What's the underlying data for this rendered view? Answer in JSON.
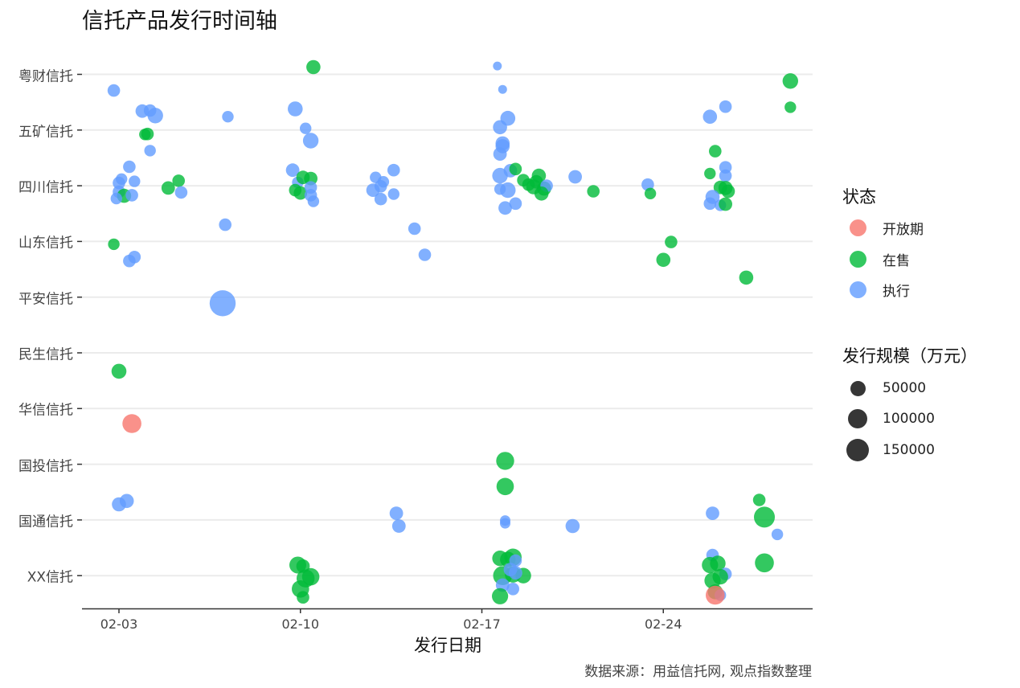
{
  "title": "信托产品发行时间轴",
  "chart_data": {
    "type": "scatter",
    "title": "信托产品发行时间轴",
    "xlabel": "发行日期",
    "ylabel": "",
    "caption": "数据来源：用益信托网, 观点指数整理",
    "x_ticks": [
      "02-03",
      "02-10",
      "02-17",
      "02-24"
    ],
    "x_range_days": [
      -1.4,
      26.8
    ],
    "y_categories": [
      "粤财信托",
      "五矿信托",
      "四川信托",
      "山东信托",
      "平安信托",
      "民生信托",
      "华信信托",
      "国投信托",
      "国通信托",
      "XX信托"
    ],
    "grid": true,
    "legend_position": "right",
    "status_legend": {
      "title": "状态",
      "items": [
        {
          "label": "开放期",
          "color": "#F8766D"
        },
        {
          "label": "在售",
          "color": "#00BA38"
        },
        {
          "label": "执行",
          "color": "#619CFF"
        }
      ]
    },
    "size_legend": {
      "title": "发行规模（万元）",
      "items": [
        {
          "label": "50000",
          "value": 50000
        },
        {
          "label": "100000",
          "value": 100000
        },
        {
          "label": "150000",
          "value": 150000
        }
      ]
    },
    "points_note": "x = days after 02-03; y = category index (0 = 粤财信托) plus jitter; size in 万元; status in {开放期, 在售, 执行}",
    "points": [
      {
        "x": 7.5,
        "y": -0.13,
        "size": 30000,
        "status": "在售"
      },
      {
        "x": -0.2,
        "y": 0.29,
        "size": 20000,
        "status": "执行"
      },
      {
        "x": 14.6,
        "y": -0.15,
        "size": 5000,
        "status": "执行"
      },
      {
        "x": 14.8,
        "y": 0.27,
        "size": 5000,
        "status": "执行"
      },
      {
        "x": 0.9,
        "y": 0.66,
        "size": 25000,
        "status": "执行"
      },
      {
        "x": 1.2,
        "y": 0.65,
        "size": 20000,
        "status": "执行"
      },
      {
        "x": 1.4,
        "y": 0.74,
        "size": 40000,
        "status": "执行"
      },
      {
        "x": 4.2,
        "y": 0.76,
        "size": 15000,
        "status": "执行"
      },
      {
        "x": 6.8,
        "y": 0.62,
        "size": 35000,
        "status": "执行"
      },
      {
        "x": 7.2,
        "y": 0.97,
        "size": 15000,
        "status": "执行"
      },
      {
        "x": 7.4,
        "y": 1.19,
        "size": 40000,
        "status": "执行"
      },
      {
        "x": 14.7,
        "y": 0.95,
        "size": 30000,
        "status": "执行"
      },
      {
        "x": 14.8,
        "y": 1.24,
        "size": 30000,
        "status": "执行"
      },
      {
        "x": 15.0,
        "y": 0.79,
        "size": 35000,
        "status": "执行"
      },
      {
        "x": 14.8,
        "y": 1.29,
        "size": 30000,
        "status": "执行"
      },
      {
        "x": 14.7,
        "y": 1.43,
        "size": 25000,
        "status": "执行"
      },
      {
        "x": 22.8,
        "y": 0.76,
        "size": 30000,
        "status": "执行"
      },
      {
        "x": 23.4,
        "y": 0.58,
        "size": 20000,
        "status": "执行"
      },
      {
        "x": 25.9,
        "y": 0.59,
        "size": 15000,
        "status": "在售"
      },
      {
        "x": 25.9,
        "y": 0.12,
        "size": 40000,
        "status": "在售"
      },
      {
        "x": 1.1,
        "y": 1.07,
        "size": 20000,
        "status": "在售"
      },
      {
        "x": 1.0,
        "y": 1.08,
        "size": 15000,
        "status": "在售"
      },
      {
        "x": 1.2,
        "y": 1.37,
        "size": 15000,
        "status": "执行"
      },
      {
        "x": 0.4,
        "y": 1.66,
        "size": 20000,
        "status": "执行"
      },
      {
        "x": 0.1,
        "y": 1.88,
        "size": 15000,
        "status": "执行"
      },
      {
        "x": 0.0,
        "y": 1.95,
        "size": 20000,
        "status": "执行"
      },
      {
        "x": 0.6,
        "y": 1.92,
        "size": 15000,
        "status": "执行"
      },
      {
        "x": 0.0,
        "y": 2.11,
        "size": 20000,
        "status": "执行"
      },
      {
        "x": 0.2,
        "y": 2.18,
        "size": 30000,
        "status": "在售"
      },
      {
        "x": 0.5,
        "y": 2.17,
        "size": 20000,
        "status": "执行"
      },
      {
        "x": 1.9,
        "y": 2.04,
        "size": 25000,
        "status": "在售"
      },
      {
        "x": 2.3,
        "y": 1.91,
        "size": 20000,
        "status": "在售"
      },
      {
        "x": 2.4,
        "y": 2.12,
        "size": 20000,
        "status": "执行"
      },
      {
        "x": 6.7,
        "y": 1.72,
        "size": 25000,
        "status": "执行"
      },
      {
        "x": -0.1,
        "y": 2.23,
        "size": 15000,
        "status": "执行"
      },
      {
        "x": 6.9,
        "y": 1.94,
        "size": 15000,
        "status": "执行"
      },
      {
        "x": 7.1,
        "y": 1.85,
        "size": 25000,
        "status": "在售"
      },
      {
        "x": 7.4,
        "y": 1.87,
        "size": 25000,
        "status": "在售"
      },
      {
        "x": 6.8,
        "y": 2.08,
        "size": 20000,
        "status": "在售"
      },
      {
        "x": 7.0,
        "y": 2.13,
        "size": 25000,
        "status": "在售"
      },
      {
        "x": 7.4,
        "y": 2.03,
        "size": 20000,
        "status": "执行"
      },
      {
        "x": 7.4,
        "y": 2.17,
        "size": 20000,
        "status": "执行"
      },
      {
        "x": 7.5,
        "y": 2.28,
        "size": 15000,
        "status": "执行"
      },
      {
        "x": 9.9,
        "y": 1.85,
        "size": 15000,
        "status": "执行"
      },
      {
        "x": 10.2,
        "y": 1.93,
        "size": 15000,
        "status": "执行"
      },
      {
        "x": 9.8,
        "y": 2.08,
        "size": 25000,
        "status": "执行"
      },
      {
        "x": 10.1,
        "y": 2.01,
        "size": 20000,
        "status": "执行"
      },
      {
        "x": 10.6,
        "y": 1.72,
        "size": 20000,
        "status": "执行"
      },
      {
        "x": 10.6,
        "y": 2.15,
        "size": 15000,
        "status": "执行"
      },
      {
        "x": 10.1,
        "y": 2.24,
        "size": 20000,
        "status": "执行"
      },
      {
        "x": 14.7,
        "y": 1.82,
        "size": 40000,
        "status": "执行"
      },
      {
        "x": 15.1,
        "y": 1.73,
        "size": 25000,
        "status": "执行"
      },
      {
        "x": 15.3,
        "y": 1.7,
        "size": 20000,
        "status": "在售"
      },
      {
        "x": 14.7,
        "y": 2.06,
        "size": 15000,
        "status": "执行"
      },
      {
        "x": 15.0,
        "y": 2.08,
        "size": 40000,
        "status": "执行"
      },
      {
        "x": 14.9,
        "y": 2.4,
        "size": 25000,
        "status": "执行"
      },
      {
        "x": 15.3,
        "y": 2.32,
        "size": 20000,
        "status": "执行"
      },
      {
        "x": 15.6,
        "y": 1.9,
        "size": 20000,
        "status": "在售"
      },
      {
        "x": 15.8,
        "y": 1.98,
        "size": 20000,
        "status": "在售"
      },
      {
        "x": 16.2,
        "y": 1.82,
        "size": 30000,
        "status": "在售"
      },
      {
        "x": 16.1,
        "y": 1.93,
        "size": 25000,
        "status": "在售"
      },
      {
        "x": 16.0,
        "y": 2.02,
        "size": 35000,
        "status": "在售"
      },
      {
        "x": 16.4,
        "y": 2.05,
        "size": 30000,
        "status": "在售"
      },
      {
        "x": 16.5,
        "y": 2.0,
        "size": 20000,
        "status": "执行"
      },
      {
        "x": 16.3,
        "y": 2.14,
        "size": 30000,
        "status": "在售"
      },
      {
        "x": 17.6,
        "y": 1.84,
        "size": 25000,
        "status": "执行"
      },
      {
        "x": 18.3,
        "y": 2.1,
        "size": 20000,
        "status": "在售"
      },
      {
        "x": 20.4,
        "y": 1.98,
        "size": 20000,
        "status": "执行"
      },
      {
        "x": 20.5,
        "y": 2.14,
        "size": 15000,
        "status": "在售"
      },
      {
        "x": 22.8,
        "y": 1.78,
        "size": 15000,
        "status": "在售"
      },
      {
        "x": 23.0,
        "y": 1.38,
        "size": 20000,
        "status": "在售"
      },
      {
        "x": 23.4,
        "y": 1.67,
        "size": 20000,
        "status": "执行"
      },
      {
        "x": 23.4,
        "y": 1.82,
        "size": 20000,
        "status": "执行"
      },
      {
        "x": 23.2,
        "y": 2.03,
        "size": 25000,
        "status": "在售"
      },
      {
        "x": 23.4,
        "y": 2.04,
        "size": 30000,
        "status": "在售"
      },
      {
        "x": 23.5,
        "y": 2.1,
        "size": 25000,
        "status": "在售"
      },
      {
        "x": 22.9,
        "y": 2.2,
        "size": 30000,
        "status": "执行"
      },
      {
        "x": 22.8,
        "y": 2.32,
        "size": 20000,
        "status": "执行"
      },
      {
        "x": 23.2,
        "y": 2.35,
        "size": 15000,
        "status": "执行"
      },
      {
        "x": 23.4,
        "y": 2.33,
        "size": 25000,
        "status": "在售"
      },
      {
        "x": -0.2,
        "y": 3.05,
        "size": 15000,
        "status": "在售"
      },
      {
        "x": 0.4,
        "y": 3.35,
        "size": 20000,
        "status": "执行"
      },
      {
        "x": 0.6,
        "y": 3.28,
        "size": 20000,
        "status": "执行"
      },
      {
        "x": 4.1,
        "y": 2.7,
        "size": 20000,
        "status": "执行"
      },
      {
        "x": 11.4,
        "y": 2.77,
        "size": 20000,
        "status": "执行"
      },
      {
        "x": 11.8,
        "y": 3.24,
        "size": 20000,
        "status": "执行"
      },
      {
        "x": 21.0,
        "y": 3.33,
        "size": 30000,
        "status": "在售"
      },
      {
        "x": 21.3,
        "y": 3.01,
        "size": 20000,
        "status": "在售"
      },
      {
        "x": 24.2,
        "y": 3.65,
        "size": 30000,
        "status": "在售"
      },
      {
        "x": 4.0,
        "y": 4.11,
        "size": 160000,
        "status": "执行"
      },
      {
        "x": 0.0,
        "y": 5.33,
        "size": 35000,
        "status": "在售"
      },
      {
        "x": 0.5,
        "y": 6.27,
        "size": 70000,
        "status": "开放期"
      },
      {
        "x": 14.9,
        "y": 6.94,
        "size": 60000,
        "status": "在售"
      },
      {
        "x": 14.9,
        "y": 7.4,
        "size": 55000,
        "status": "在售"
      },
      {
        "x": 0.0,
        "y": 7.72,
        "size": 30000,
        "status": "执行"
      },
      {
        "x": 0.3,
        "y": 7.66,
        "size": 30000,
        "status": "执行"
      },
      {
        "x": 10.7,
        "y": 7.88,
        "size": 25000,
        "status": "执行"
      },
      {
        "x": 10.8,
        "y": 8.11,
        "size": 25000,
        "status": "执行"
      },
      {
        "x": 14.9,
        "y": 8.01,
        "size": 10000,
        "status": "执行"
      },
      {
        "x": 14.9,
        "y": 8.06,
        "size": 10000,
        "status": "执行"
      },
      {
        "x": 17.5,
        "y": 8.11,
        "size": 30000,
        "status": "执行"
      },
      {
        "x": 22.9,
        "y": 7.88,
        "size": 25000,
        "status": "执行"
      },
      {
        "x": 24.7,
        "y": 7.64,
        "size": 20000,
        "status": "在售"
      },
      {
        "x": 24.9,
        "y": 7.95,
        "size": 90000,
        "status": "在售"
      },
      {
        "x": 25.4,
        "y": 8.26,
        "size": 15000,
        "status": "执行"
      },
      {
        "x": 6.9,
        "y": 8.81,
        "size": 50000,
        "status": "在售"
      },
      {
        "x": 7.1,
        "y": 8.83,
        "size": 25000,
        "status": "在售"
      },
      {
        "x": 7.2,
        "y": 9.05,
        "size": 60000,
        "status": "在售"
      },
      {
        "x": 7.4,
        "y": 9.02,
        "size": 55000,
        "status": "在售"
      },
      {
        "x": 7.0,
        "y": 9.24,
        "size": 55000,
        "status": "在售"
      },
      {
        "x": 7.1,
        "y": 9.39,
        "size": 20000,
        "status": "在售"
      },
      {
        "x": 14.7,
        "y": 8.69,
        "size": 40000,
        "status": "在售"
      },
      {
        "x": 15.0,
        "y": 8.71,
        "size": 40000,
        "status": "在售"
      },
      {
        "x": 15.2,
        "y": 8.67,
        "size": 55000,
        "status": "在售"
      },
      {
        "x": 15.3,
        "y": 8.73,
        "size": 20000,
        "status": "执行"
      },
      {
        "x": 14.8,
        "y": 9.0,
        "size": 70000,
        "status": "在售"
      },
      {
        "x": 15.2,
        "y": 8.98,
        "size": 45000,
        "status": "在售"
      },
      {
        "x": 15.6,
        "y": 9.0,
        "size": 40000,
        "status": "在售"
      },
      {
        "x": 15.1,
        "y": 8.89,
        "size": 25000,
        "status": "执行"
      },
      {
        "x": 15.3,
        "y": 8.95,
        "size": 25000,
        "status": "执行"
      },
      {
        "x": 14.8,
        "y": 9.17,
        "size": 25000,
        "status": "执行"
      },
      {
        "x": 15.2,
        "y": 9.24,
        "size": 20000,
        "status": "执行"
      },
      {
        "x": 14.7,
        "y": 9.37,
        "size": 45000,
        "status": "在售"
      },
      {
        "x": 22.9,
        "y": 8.63,
        "size": 20000,
        "status": "执行"
      },
      {
        "x": 22.8,
        "y": 8.81,
        "size": 45000,
        "status": "在售"
      },
      {
        "x": 23.1,
        "y": 8.78,
        "size": 40000,
        "status": "在售"
      },
      {
        "x": 23.4,
        "y": 8.97,
        "size": 20000,
        "status": "执行"
      },
      {
        "x": 22.9,
        "y": 9.09,
        "size": 45000,
        "status": "在售"
      },
      {
        "x": 23.2,
        "y": 9.02,
        "size": 40000,
        "status": "在售"
      },
      {
        "x": 23.0,
        "y": 9.29,
        "size": 35000,
        "status": "在售"
      },
      {
        "x": 23.2,
        "y": 9.35,
        "size": 15000,
        "status": "执行"
      },
      {
        "x": 23.0,
        "y": 9.35,
        "size": 70000,
        "status": "开放期"
      },
      {
        "x": 24.9,
        "y": 8.77,
        "size": 70000,
        "status": "在售"
      }
    ]
  },
  "axes": {
    "x_ticks": [
      "02-03",
      "02-10",
      "02-17",
      "02-24"
    ],
    "x_title": "发行日期",
    "y_labels": [
      "粤财信托",
      "五矿信托",
      "四川信托",
      "山东信托",
      "平安信托",
      "民生信托",
      "华信信托",
      "国投信托",
      "国通信托",
      "XX信托"
    ]
  },
  "legend": {
    "status_title": "状态",
    "status": [
      "开放期",
      "在售",
      "执行"
    ],
    "size_title": "发行规模（万元）",
    "sizes": [
      "50000",
      "100000",
      "150000"
    ]
  },
  "caption": "数据来源：用益信托网, 观点指数整理",
  "colors": {
    "开放期": "#F8766D",
    "在售": "#00BA38",
    "执行": "#619CFF",
    "grid": "#EBEBEB",
    "axis": "#333333",
    "size_key": "#1a1a1a"
  }
}
